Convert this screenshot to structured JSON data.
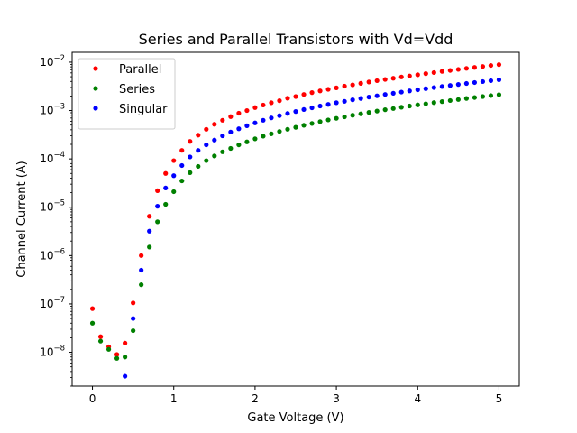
{
  "chart_data": {
    "type": "scatter",
    "title": "Series and Parallel Transistors with Vd=Vdd",
    "xlabel": "Gate Voltage (V)",
    "ylabel": "Channel Current (A)",
    "xlim": [
      -0.25,
      5.25
    ],
    "ylim": [
      2e-09,
      0.016
    ],
    "yscale": "log",
    "grid": false,
    "legend_position": "top-left",
    "x_ticks": [
      {
        "value": 0,
        "label": "0"
      },
      {
        "value": 1,
        "label": "1"
      },
      {
        "value": 2,
        "label": "2"
      },
      {
        "value": 3,
        "label": "3"
      },
      {
        "value": 4,
        "label": "4"
      },
      {
        "value": 5,
        "label": "5"
      }
    ],
    "y_ticks": [
      {
        "value": 1e-08,
        "mantissa": "10",
        "exp": "−8"
      },
      {
        "value": 1e-07,
        "mantissa": "10",
        "exp": "−7"
      },
      {
        "value": 1e-06,
        "mantissa": "10",
        "exp": "−6"
      },
      {
        "value": 1e-05,
        "mantissa": "10",
        "exp": "−5"
      },
      {
        "value": 0.0001,
        "mantissa": "10",
        "exp": "−4"
      },
      {
        "value": 0.001,
        "mantissa": "10",
        "exp": "−3"
      },
      {
        "value": 0.01,
        "mantissa": "10",
        "exp": "−2"
      }
    ],
    "series": [
      {
        "name": "Parallel",
        "color": "#ff0000",
        "points": [
          [
            0.0,
            8e-08
          ],
          [
            0.1,
            2.1e-08
          ],
          [
            0.2,
            1.3e-08
          ],
          [
            0.3,
            9e-09
          ],
          [
            0.4,
            1.55e-08
          ],
          [
            0.5,
            1.05e-07
          ],
          [
            0.6,
            1e-06
          ],
          [
            0.7,
            6.5e-06
          ],
          [
            0.8,
            2.2e-05
          ],
          [
            0.9,
            5e-05
          ],
          [
            1.0,
            9.2e-05
          ],
          [
            1.1,
            0.00015
          ],
          [
            1.2,
            0.00023
          ],
          [
            1.3,
            0.00031
          ],
          [
            1.4,
            0.00041
          ],
          [
            1.5,
            0.00052
          ],
          [
            1.6,
            0.00063
          ],
          [
            1.7,
            0.00075
          ],
          [
            1.8,
            0.00088
          ],
          [
            1.9,
            0.001
          ],
          [
            2.0,
            0.00115
          ],
          [
            2.1,
            0.0013
          ],
          [
            2.2,
            0.00145
          ],
          [
            2.3,
            0.0016
          ],
          [
            2.4,
            0.0018
          ],
          [
            2.5,
            0.00195
          ],
          [
            2.6,
            0.00215
          ],
          [
            2.7,
            0.00235
          ],
          [
            2.8,
            0.00255
          ],
          [
            2.9,
            0.00275
          ],
          [
            3.0,
            0.00295
          ],
          [
            3.1,
            0.0032
          ],
          [
            3.2,
            0.0034
          ],
          [
            3.3,
            0.00365
          ],
          [
            3.4,
            0.0039
          ],
          [
            3.5,
            0.00415
          ],
          [
            3.6,
            0.0044
          ],
          [
            3.7,
            0.00465
          ],
          [
            3.8,
            0.00495
          ],
          [
            3.9,
            0.0052
          ],
          [
            4.0,
            0.0055
          ],
          [
            4.1,
            0.0058
          ],
          [
            4.2,
            0.0061
          ],
          [
            4.3,
            0.00645
          ],
          [
            4.4,
            0.00675
          ],
          [
            4.5,
            0.0071
          ],
          [
            4.6,
            0.00745
          ],
          [
            4.7,
            0.0078
          ],
          [
            4.8,
            0.00815
          ],
          [
            4.9,
            0.00855
          ],
          [
            5.0,
            0.0089
          ]
        ]
      },
      {
        "name": "Series",
        "color": "#008000",
        "points": [
          [
            0.0,
            4e-08
          ],
          [
            0.1,
            1.7e-08
          ],
          [
            0.2,
            1.15e-08
          ],
          [
            0.3,
            7.5e-09
          ],
          [
            0.4,
            8e-09
          ],
          [
            0.5,
            2.8e-08
          ],
          [
            0.6,
            2.5e-07
          ],
          [
            0.7,
            1.5e-06
          ],
          [
            0.8,
            5e-06
          ],
          [
            0.9,
            1.15e-05
          ],
          [
            1.0,
            2.1e-05
          ],
          [
            1.1,
            3.5e-05
          ],
          [
            1.2,
            5.2e-05
          ],
          [
            1.3,
            7e-05
          ],
          [
            1.4,
            9.2e-05
          ],
          [
            1.5,
            0.000115
          ],
          [
            1.6,
            0.00014
          ],
          [
            1.7,
            0.000165
          ],
          [
            1.8,
            0.000195
          ],
          [
            1.9,
            0.000225
          ],
          [
            2.0,
            0.00026
          ],
          [
            2.1,
            0.000295
          ],
          [
            2.2,
            0.00033
          ],
          [
            2.3,
            0.00037
          ],
          [
            2.4,
            0.00041
          ],
          [
            2.5,
            0.00045
          ],
          [
            2.6,
            0.000495
          ],
          [
            2.7,
            0.00054
          ],
          [
            2.8,
            0.00059
          ],
          [
            2.9,
            0.00064
          ],
          [
            3.0,
            0.00069
          ],
          [
            3.1,
            0.00074
          ],
          [
            3.2,
            0.0008
          ],
          [
            3.3,
            0.000855
          ],
          [
            3.4,
            0.000915
          ],
          [
            3.5,
            0.000975
          ],
          [
            3.6,
            0.00104
          ],
          [
            3.7,
            0.0011
          ],
          [
            3.8,
            0.00117
          ],
          [
            3.9,
            0.00124
          ],
          [
            4.0,
            0.00131
          ],
          [
            4.1,
            0.00138
          ],
          [
            4.2,
            0.00146
          ],
          [
            4.3,
            0.00153
          ],
          [
            4.4,
            0.00161
          ],
          [
            4.5,
            0.00169
          ],
          [
            4.6,
            0.00178
          ],
          [
            4.7,
            0.00186
          ],
          [
            4.8,
            0.00195
          ],
          [
            4.9,
            0.00204
          ],
          [
            5.0,
            0.00213
          ]
        ]
      },
      {
        "name": "Singular",
        "color": "#0000ff",
        "points": [
          [
            0.4,
            3.2e-09
          ],
          [
            0.5,
            5e-08
          ],
          [
            0.6,
            5e-07
          ],
          [
            0.7,
            3.2e-06
          ],
          [
            0.8,
            1.05e-05
          ],
          [
            0.9,
            2.5e-05
          ],
          [
            1.0,
            4.5e-05
          ],
          [
            1.1,
            7.3e-05
          ],
          [
            1.2,
            0.00011
          ],
          [
            1.3,
            0.00015
          ],
          [
            1.4,
            0.000195
          ],
          [
            1.5,
            0.000245
          ],
          [
            1.6,
            0.0003
          ],
          [
            1.7,
            0.00036
          ],
          [
            1.8,
            0.00042
          ],
          [
            1.9,
            0.000485
          ],
          [
            2.0,
            0.000555
          ],
          [
            2.1,
            0.00063
          ],
          [
            2.2,
            0.000705
          ],
          [
            2.3,
            0.000785
          ],
          [
            2.4,
            0.00087
          ],
          [
            2.5,
            0.000955
          ],
          [
            2.6,
            0.00105
          ],
          [
            2.7,
            0.00114
          ],
          [
            2.8,
            0.00124
          ],
          [
            2.9,
            0.00134
          ],
          [
            3.0,
            0.00145
          ],
          [
            3.1,
            0.00155
          ],
          [
            3.2,
            0.00167
          ],
          [
            3.3,
            0.00178
          ],
          [
            3.4,
            0.0019
          ],
          [
            3.5,
            0.00202
          ],
          [
            3.6,
            0.00215
          ],
          [
            3.7,
            0.00228
          ],
          [
            3.8,
            0.00241
          ],
          [
            3.9,
            0.00255
          ],
          [
            4.0,
            0.00269
          ],
          [
            4.1,
            0.00284
          ],
          [
            4.2,
            0.00299
          ],
          [
            4.3,
            0.00314
          ],
          [
            4.4,
            0.0033
          ],
          [
            4.5,
            0.00346
          ],
          [
            4.6,
            0.00363
          ],
          [
            4.7,
            0.0038
          ],
          [
            4.8,
            0.00397
          ],
          [
            4.9,
            0.00415
          ],
          [
            5.0,
            0.00433
          ]
        ]
      }
    ]
  }
}
